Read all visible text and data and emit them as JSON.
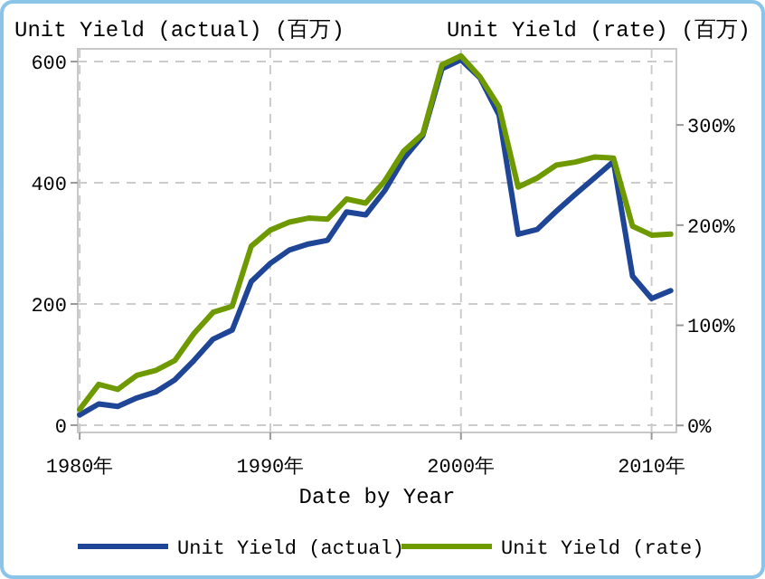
{
  "chart_data": {
    "type": "line",
    "xlabel": "Date by Year",
    "ylabel": "Unit Yield (actual) (百万)",
    "y2label": "Unit Yield (rate) (百万)",
    "x": [
      1980,
      1981,
      1982,
      1983,
      1984,
      1985,
      1986,
      1987,
      1988,
      1989,
      1990,
      1991,
      1992,
      1993,
      1994,
      1995,
      1996,
      1997,
      1998,
      1999,
      2000,
      2001,
      2002,
      2003,
      2004,
      2005,
      2006,
      2007,
      2008,
      2009,
      2010,
      2011
    ],
    "xlim": [
      1979.9,
      2011.3
    ],
    "xticks": [
      {
        "value": 1980,
        "label": "1980年"
      },
      {
        "value": 1990,
        "label": "1990年"
      },
      {
        "value": 2000,
        "label": "2000年"
      },
      {
        "value": 2010,
        "label": "2010年"
      }
    ],
    "ylim": [
      -12,
      621
    ],
    "yticks": [
      0,
      200,
      400,
      600
    ],
    "y2lim": [
      -7,
      376
    ],
    "y2ticks": [
      {
        "value": 0,
        "label": "0%"
      },
      {
        "value": 100,
        "label": "100%"
      },
      {
        "value": 200,
        "label": "200%"
      },
      {
        "value": 300,
        "label": "300%"
      }
    ],
    "grid": true,
    "legend": "bottom",
    "line_style": "solid",
    "series": [
      {
        "name": "Unit Yield (actual)",
        "color": "#1f4597",
        "values": [
          17,
          35,
          31,
          45,
          55,
          75,
          107,
          142,
          157,
          237,
          267,
          289,
          299,
          305,
          352,
          347,
          387,
          440,
          478,
          588,
          603,
          573,
          512,
          315,
          323,
          353,
          381,
          408,
          435,
          246,
          209,
          222
        ]
      },
      {
        "name": "Unit Yield (rate)",
        "color": "#6e9a00",
        "axis": "y2",
        "values": [
          16,
          41,
          36,
          50,
          55,
          65,
          92,
          113,
          119,
          179,
          195,
          203,
          207,
          206,
          226,
          222,
          244,
          274,
          291,
          360,
          369,
          348,
          318,
          238,
          247,
          260,
          263,
          268,
          267,
          199,
          190,
          191
        ]
      }
    ]
  }
}
